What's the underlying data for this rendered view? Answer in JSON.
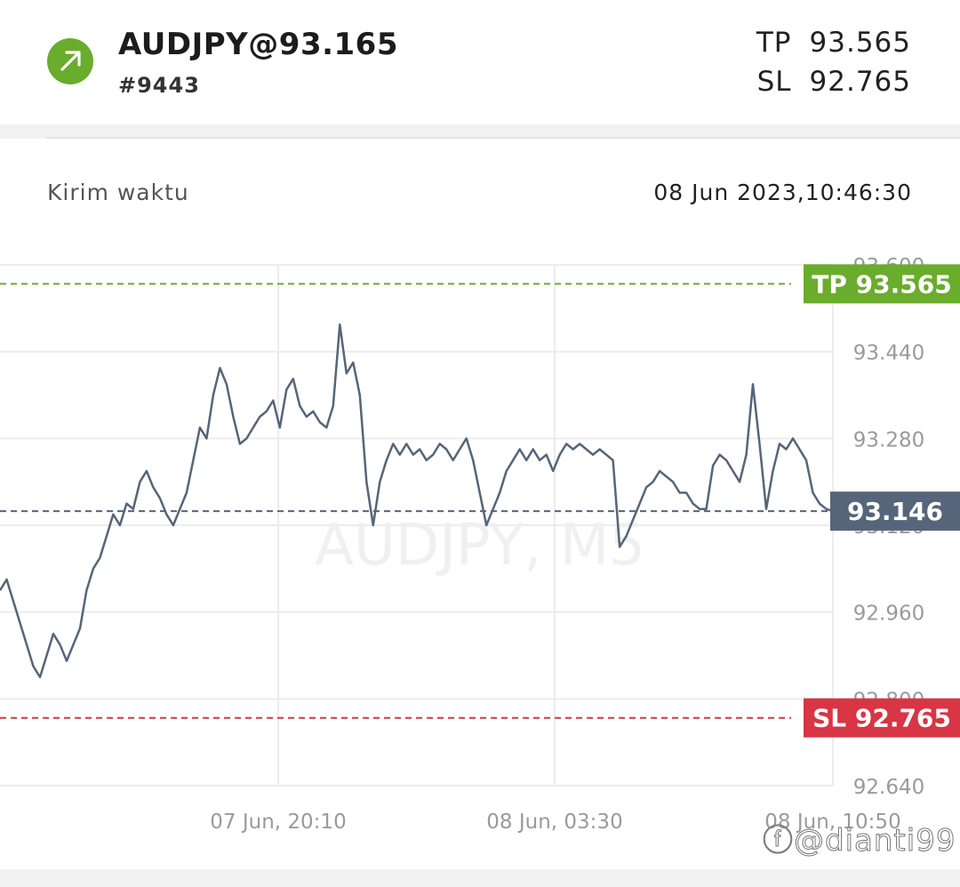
{
  "header": {
    "direction_icon": "arrow-up-right-icon",
    "symbol": "AUDJPY@93.165",
    "ticket": "#9443",
    "tp_label": "TP",
    "tp_value": "93.565",
    "sl_label": "SL",
    "sl_value": "92.765"
  },
  "info": {
    "send_time_label": "Kirim waktu",
    "send_time_value": "08 Jun 2023,10:46:30"
  },
  "colors": {
    "buy_green": "#6aac2c",
    "tp_green": "#6aac2c",
    "sl_red": "#d83545",
    "price_line": "#566579",
    "current_badge": "#566579"
  },
  "chart_data": {
    "type": "line",
    "watermark": "AUDJPY, M5",
    "y_ticks": [
      "92.640",
      "92.800",
      "92.960",
      "93.120",
      "93.280",
      "93.440",
      "93.600"
    ],
    "x_ticks": [
      "07 Jun, 20:10",
      "08 Jun, 03:30",
      "08 Jun, 10:50"
    ],
    "ylim": [
      92.64,
      93.6
    ],
    "tp_label": "TP 93.565",
    "tp_value": 93.565,
    "sl_label": "SL 92.765",
    "sl_value": 92.765,
    "current_label": "93.146",
    "current_value": 93.146,
    "grid": true,
    "series": [
      {
        "values": [
          93.0,
          93.02,
          92.98,
          92.94,
          92.9,
          92.86,
          92.84,
          92.88,
          92.92,
          92.9,
          92.87,
          92.9,
          92.93,
          93.0,
          93.04,
          93.06,
          93.1,
          93.14,
          93.12,
          93.16,
          93.15,
          93.2,
          93.22,
          93.19,
          93.17,
          93.14,
          93.12,
          93.15,
          93.18,
          93.24,
          93.3,
          93.28,
          93.36,
          93.41,
          93.38,
          93.32,
          93.27,
          93.28,
          93.3,
          93.32,
          93.33,
          93.35,
          93.3,
          93.37,
          93.39,
          93.34,
          93.32,
          93.33,
          93.31,
          93.3,
          93.34,
          93.49,
          93.4,
          93.42,
          93.36,
          93.2,
          93.12,
          93.2,
          93.24,
          93.27,
          93.25,
          93.27,
          93.25,
          93.26,
          93.24,
          93.25,
          93.27,
          93.26,
          93.24,
          93.26,
          93.28,
          93.24,
          93.18,
          93.12,
          93.15,
          93.18,
          93.22,
          93.24,
          93.26,
          93.24,
          93.26,
          93.24,
          93.25,
          93.22,
          93.25,
          93.27,
          93.26,
          93.27,
          93.26,
          93.25,
          93.26,
          93.25,
          93.24,
          93.08,
          93.1,
          93.13,
          93.16,
          93.19,
          93.2,
          93.22,
          93.21,
          93.2,
          93.18,
          93.18,
          93.16,
          93.15,
          93.15,
          93.23,
          93.25,
          93.24,
          93.22,
          93.2,
          93.25,
          93.38,
          93.27,
          93.15,
          93.22,
          93.27,
          93.26,
          93.28,
          93.26,
          93.24,
          93.18,
          93.16,
          93.15,
          93.146
        ]
      }
    ]
  }
}
